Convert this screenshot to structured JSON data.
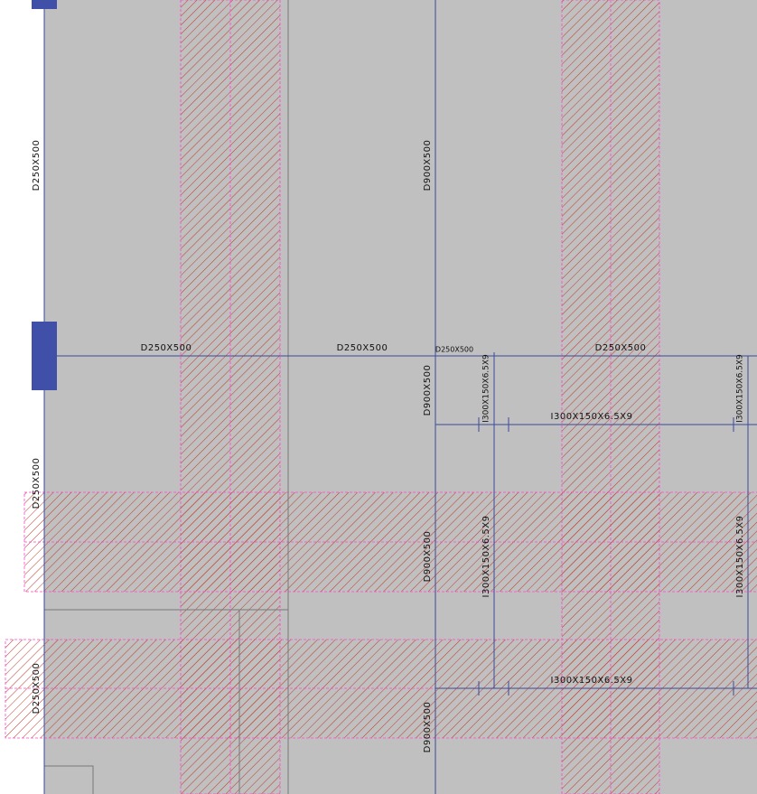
{
  "left_beam_labels": [
    "D250X500",
    "D250X500",
    "D250X500"
  ],
  "girder_labels": [
    "D900X500",
    "D900X500",
    "D900X500",
    "D900X500"
  ],
  "top_beam_labels": [
    "D250X500",
    "D250X500",
    "D250X500",
    "D250X500"
  ],
  "steel_vertical_labels": [
    "I300X150X6.5X9",
    "I300X150X6.5X9",
    "I300X150X6.5X9",
    "I300X150X6.5X9"
  ],
  "steel_horizontal_labels": [
    "I300X150X6.5X9",
    "I300X150X6.5X9"
  ]
}
